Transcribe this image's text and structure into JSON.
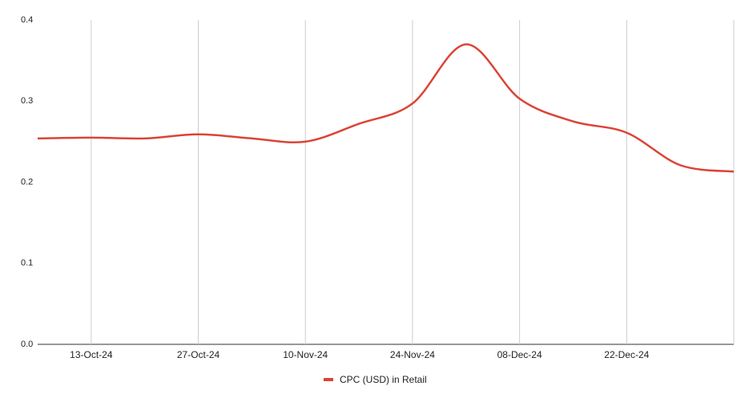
{
  "chart_data": {
    "type": "line",
    "categories": [
      null,
      "13-Oct-24",
      null,
      "27-Oct-24",
      null,
      "10-Nov-24",
      null,
      "24-Nov-24",
      null,
      "08-Dec-24",
      null,
      "22-Dec-24",
      null,
      null
    ],
    "series": [
      {
        "name": "CPC (USD) in Retail",
        "color": "#db4437",
        "values": [
          0.254,
          0.255,
          0.254,
          0.259,
          0.254,
          0.25,
          0.272,
          0.297,
          0.37,
          0.303,
          0.275,
          0.261,
          0.221,
          0.213
        ]
      }
    ],
    "ylim": [
      0,
      0.4
    ],
    "yticks": [
      {
        "value": 0,
        "label": "0.0"
      },
      0.1,
      0.2,
      0.3,
      0.4
    ],
    "grid": true,
    "legend": "bottom"
  }
}
